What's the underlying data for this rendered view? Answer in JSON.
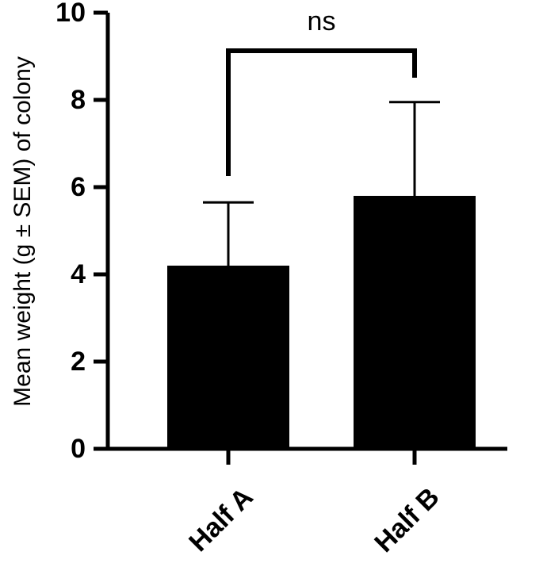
{
  "chart_data": {
    "type": "bar",
    "categories": [
      "Half A",
      "Half B"
    ],
    "values": [
      4.2,
      5.8
    ],
    "error_upper": [
      5.65,
      7.95
    ],
    "ylabel": "Mean weight (g ± SEM) of colony",
    "xlabel": "",
    "ylim": [
      0,
      10
    ],
    "yticks": [
      0,
      2,
      4,
      6,
      8,
      10
    ],
    "grid": false,
    "bar_color": "#000000",
    "annotation": {
      "text": "ns",
      "between": [
        "Half A",
        "Half B"
      ]
    }
  }
}
